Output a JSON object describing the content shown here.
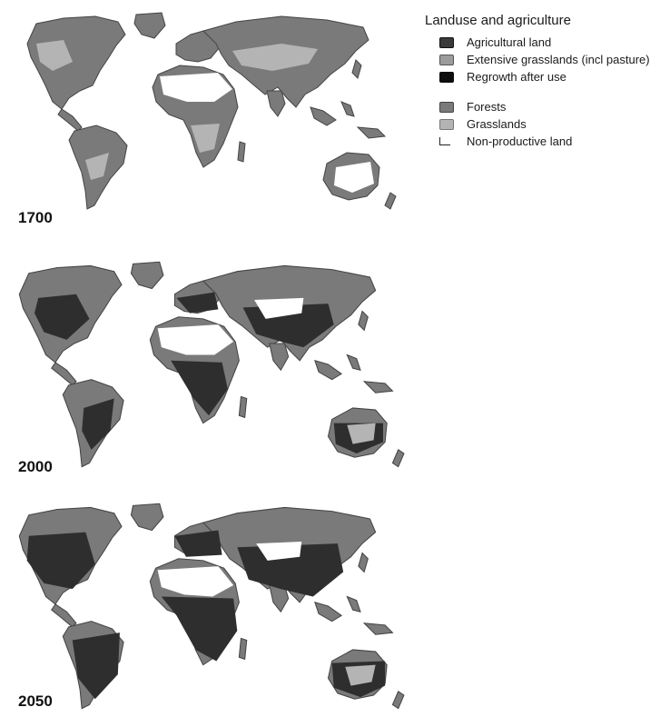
{
  "legend": {
    "title": "Landuse and agriculture",
    "items": [
      {
        "label": "Agricultural land",
        "color": "#3a3a3a",
        "icon": "dark-swatch"
      },
      {
        "label": "Extensive grasslands (incl pasture)",
        "color": "#9c9c9c",
        "icon": "mid-swatch"
      },
      {
        "label": "Regrowth after use",
        "color": "#0d0d0d",
        "icon": "black-swatch"
      }
    ],
    "items2": [
      {
        "label": "Forests",
        "color": "#7a7a7a",
        "icon": "forest-swatch"
      },
      {
        "label": "Grasslands",
        "color": "#b4b4b4",
        "icon": "grassland-swatch"
      },
      {
        "label": "Non-productive land",
        "color": "#ffffff",
        "icon": "line-swatch"
      }
    ]
  },
  "maps": [
    {
      "year": "1700"
    },
    {
      "year": "2000"
    },
    {
      "year": "2050"
    }
  ]
}
